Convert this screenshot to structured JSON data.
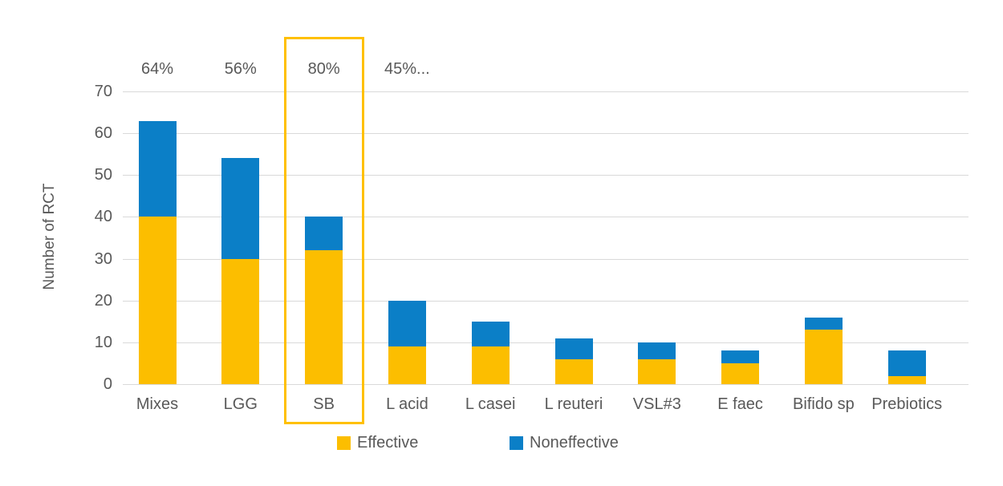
{
  "figure": {
    "background": "#ffffff",
    "text_color": "#595959",
    "gridline_color": "#d9d9d9"
  },
  "chart_data": {
    "type": "bar",
    "stacked": true,
    "title": "",
    "xlabel": "",
    "ylabel": "Number of RCT",
    "ylim": [
      0,
      70
    ],
    "ytick_step": 10,
    "yticks": [
      "0",
      "10",
      "20",
      "30",
      "40",
      "50",
      "60",
      "70"
    ],
    "grid": "horizontal",
    "legend_position": "bottom",
    "categories": [
      "Mixes",
      "LGG",
      "SB",
      "L acid",
      "L casei",
      "L reuteri",
      "VSL#3",
      "E faec",
      "Bifido sp",
      "Prebiotics"
    ],
    "series": [
      {
        "name": "Effective",
        "color": "#fcbe00",
        "values": [
          40,
          30,
          32,
          9,
          9,
          6,
          6,
          5,
          13,
          2
        ]
      },
      {
        "name": "Noneffective",
        "color": "#0b7fc7",
        "values": [
          23,
          24,
          8,
          11,
          6,
          5,
          4,
          3,
          3,
          6
        ]
      }
    ],
    "totals": [
      63,
      54,
      40,
      20,
      15,
      11,
      10,
      8,
      16,
      8
    ],
    "percent_labels": [
      "64%",
      "56%",
      "80%",
      "45%...",
      "",
      "",
      "",
      "",
      "",
      ""
    ],
    "highlight": {
      "category": "SB",
      "index": 2,
      "color": "#ffc000"
    }
  }
}
